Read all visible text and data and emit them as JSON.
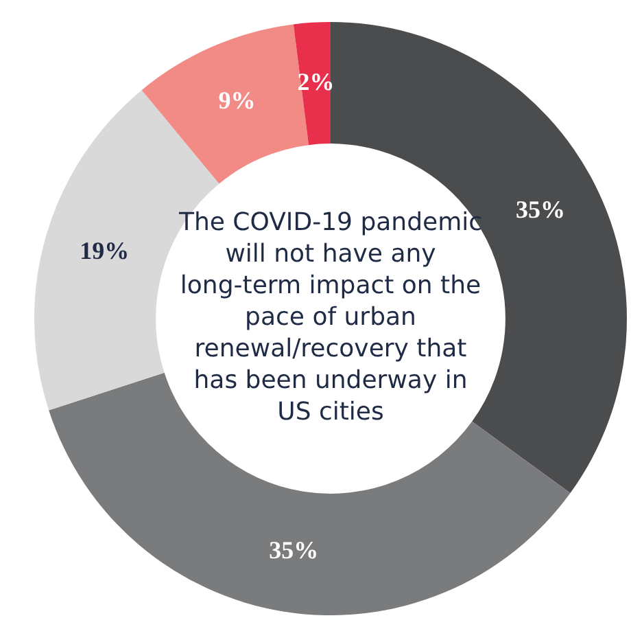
{
  "chart_data": {
    "type": "donut",
    "title": "The COVID-19 pandemic will not have any long-term impact on the pace of urban renewal/recovery that has been underway in US cities",
    "categories": [
      null,
      null,
      null,
      null,
      null
    ],
    "values": [
      35,
      35,
      19,
      9,
      2
    ],
    "colors": [
      "#4b4c4e",
      "#7a7b7d",
      "#d9d9da",
      "#f28b86",
      "#e8304c"
    ],
    "value_labels": [
      "35%",
      "35%",
      "19%",
      "9%",
      "2%"
    ],
    "legend": false
  }
}
